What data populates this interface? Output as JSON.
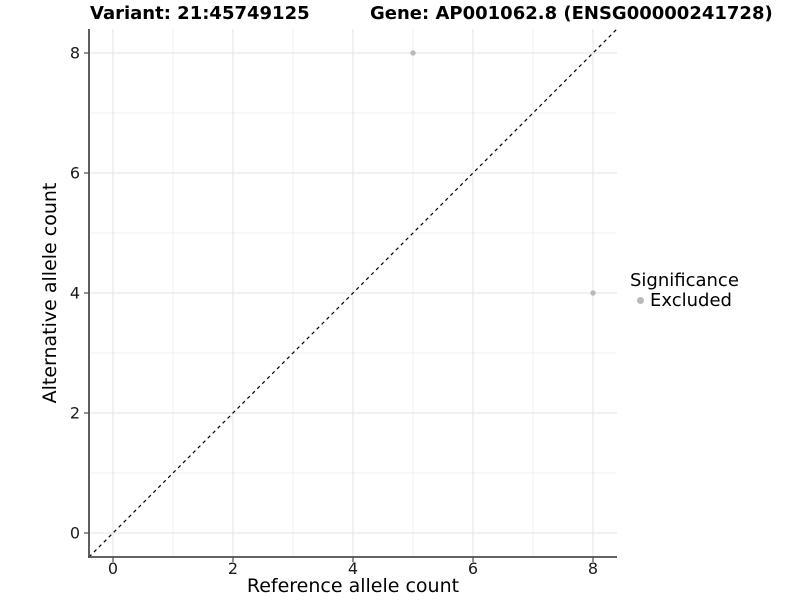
{
  "chart_data": {
    "type": "scatter",
    "title_left": "Variant: 21:45749125",
    "title_right": "Gene: AP001062.8 (ENSG00000241728)",
    "xlabel": "Reference allele count",
    "ylabel": "Alternative allele count",
    "xlim": [
      -0.4,
      8.4
    ],
    "ylim": [
      -0.4,
      8.4
    ],
    "xticks": [
      0,
      2,
      4,
      6,
      8
    ],
    "yticks": [
      0,
      2,
      4,
      6,
      8
    ],
    "minor_xticks": [
      1,
      3,
      5,
      7
    ],
    "minor_yticks": [
      1,
      3,
      5,
      7
    ],
    "grid": "major and minor, light gray on white",
    "legend_position": "right-center",
    "legend": {
      "title": "Significance",
      "items": [
        {
          "label": "Excluded",
          "color": "#b9b9b9"
        }
      ]
    },
    "series": [
      {
        "name": "Excluded",
        "marker": "circle",
        "color": "#b9b9b9",
        "points": [
          {
            "x": 5,
            "y": 8
          },
          {
            "x": 8,
            "y": 4
          }
        ]
      }
    ],
    "reference_line": {
      "kind": "identity y=x",
      "style": "dashed",
      "color": "#000000",
      "x1": -0.4,
      "y1": -0.4,
      "x2": 8.4,
      "y2": 8.4
    }
  },
  "colors": {
    "background": "#ffffff",
    "grid_major": "#e3e3e3",
    "grid_minor": "#f0f0f0",
    "axis_line": "#4d4d4d",
    "tick_mark": "#4d4d4d",
    "tick_label": "#1a1a1a",
    "point": "#b9b9b9",
    "dashed_line": "#000000"
  }
}
